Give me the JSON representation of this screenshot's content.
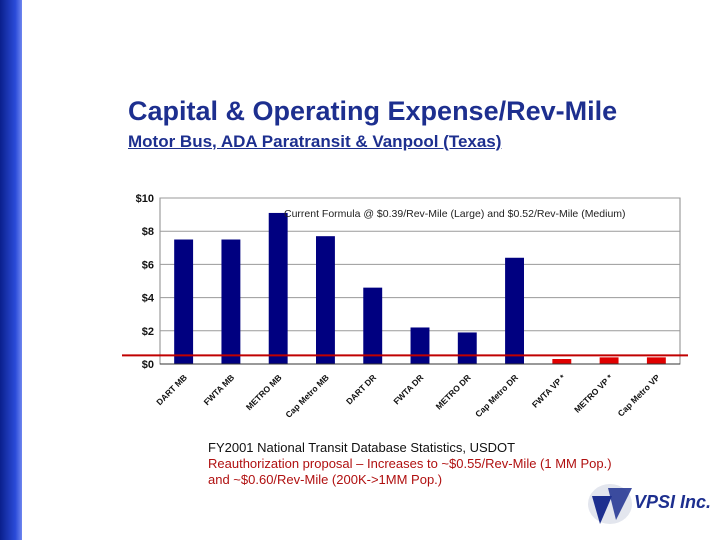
{
  "slide": {
    "title": "Capital & Operating Expense/Rev-Mile",
    "subtitle": "Motor Bus, ADA Paratransit & Vanpool (Texas)"
  },
  "chart_data": {
    "type": "bar",
    "categories": [
      "DART MB",
      "FWTA MB",
      "METRO MB",
      "Cap Metro MB",
      "DART DR",
      "FWTA DR",
      "METRO DR",
      "Cap Metro DR",
      "FWTA VP *",
      "METRO VP *",
      "Cap Metro VP"
    ],
    "values": [
      7.5,
      7.5,
      9.1,
      7.7,
      4.6,
      2.2,
      1.9,
      6.4,
      0.3,
      0.4,
      0.4
    ],
    "bar_colors": [
      "#000080",
      "#000080",
      "#000080",
      "#000080",
      "#000080",
      "#000080",
      "#000080",
      "#000080",
      "#e00000",
      "#e00000",
      "#e00000"
    ],
    "yticks": [
      "$0",
      "$2",
      "$4",
      "$6",
      "$8",
      "$10"
    ],
    "ylim": [
      0,
      10
    ],
    "grid": true,
    "annotation": "Current Formula @ $0.39/Rev-Mile (Large) and $0.52/Rev-Mile (Medium)",
    "reference_line": {
      "value": 0.52,
      "color": "#c00000"
    }
  },
  "notes": {
    "source": "FY2001 National Transit Database Statistics, USDOT",
    "line1": "Reauthorization proposal – Increases to ~$0.55/Rev-Mile (1 MM Pop.)",
    "line2": "and ~$0.60/Rev-Mile (200K->1MM Pop.)"
  },
  "logo": {
    "text": "VPSI Inc."
  },
  "colors": {
    "title": "#1d2f8f",
    "bar": "#000080",
    "vanpool_bar": "#e00000",
    "note_red": "#b01010"
  }
}
